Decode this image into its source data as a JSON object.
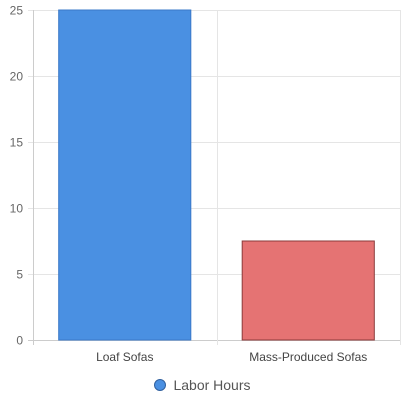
{
  "chart_data": {
    "type": "bar",
    "categories": [
      "Loaf Sofas",
      "Mass-Produced Sofas"
    ],
    "series": [
      {
        "name": "Labor Hours",
        "values": [
          25,
          7.5
        ]
      }
    ],
    "bar_colors": [
      "#4a90e2",
      "#e57373"
    ],
    "bar_border_colors": [
      "#3a78c8",
      "#8b3a3a"
    ],
    "ylim": [
      0,
      25
    ],
    "yticks": [
      0,
      5,
      10,
      15,
      20,
      25
    ],
    "grid": true,
    "legend_position": "bottom",
    "title": "",
    "xlabel": "",
    "ylabel": ""
  }
}
